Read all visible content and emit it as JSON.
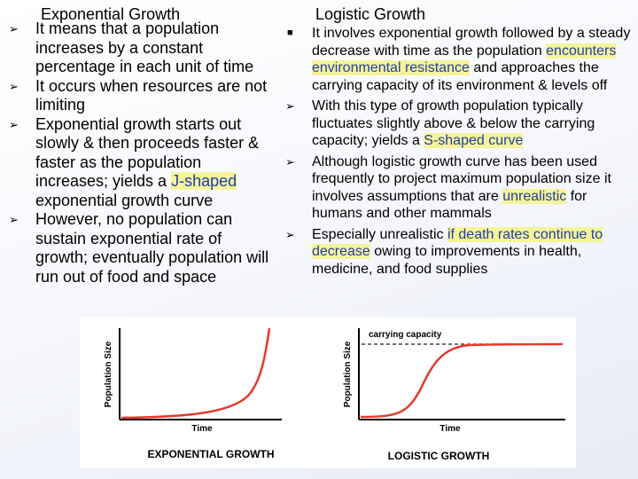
{
  "left": {
    "title": "Exponential Growth",
    "bullets": [
      {
        "segments": [
          {
            "text": "It means that a population increases by a constant percentage in each unit of time",
            "highlight": false
          }
        ]
      },
      {
        "segments": [
          {
            "text": "It occurs when resources are not limiting",
            "highlight": false
          }
        ]
      },
      {
        "segments": [
          {
            "text": "Exponential growth starts out slowly & then proceeds faster & faster as the population increases; yields a ",
            "highlight": false
          },
          {
            "text": "J-shaped",
            "highlight": true
          },
          {
            "text": " exponential growth curve",
            "highlight": false
          }
        ]
      },
      {
        "segments": [
          {
            "text": "However, no population can sustain exponential rate of growth; eventually population will run out of food and space",
            "highlight": false
          }
        ]
      }
    ]
  },
  "right": {
    "title": "Logistic Growth",
    "bullets": [
      {
        "marker": "square",
        "segments": [
          {
            "text": "It involves exponential growth followed by a steady decrease with time as the population ",
            "highlight": false
          },
          {
            "text": "encounters environmental resistance",
            "highlight": true
          },
          {
            "text": " and approaches the carrying capacity of its environment & levels off",
            "highlight": false
          }
        ]
      },
      {
        "marker": "arrow",
        "segments": [
          {
            "text": "With this type of growth population typically fluctuates slightly above & below the carrying capacity; yields a ",
            "highlight": false
          },
          {
            "text": "S-shaped curve",
            "highlight": true
          }
        ]
      },
      {
        "marker": "arrow",
        "segments": [
          {
            "text": "Although logistic growth curve has been used frequently to project maximum population size it involves assumptions that are ",
            "highlight": false
          },
          {
            "text": "unrealistic",
            "highlight": true
          },
          {
            "text": " for humans and other mammals",
            "highlight": false
          }
        ]
      },
      {
        "marker": "arrow",
        "segments": [
          {
            "text": "Especially unrealistic ",
            "highlight": false
          },
          {
            "text": "if death rates  continue to decrease",
            "highlight": true
          },
          {
            "text": " owing to improvements in health, medicine, and food supplies",
            "highlight": false
          }
        ]
      }
    ]
  },
  "figure": {
    "exponential": {
      "ylabel": "Population Size",
      "xlabel": "Time",
      "caption": "EXPONENTIAL GROWTH",
      "curve_color": "#e53a2c"
    },
    "logistic": {
      "ylabel": "Population Size",
      "xlabel": "Time",
      "caption": "LOGISTIC GROWTH",
      "capacity_label": "carrying capacity",
      "curve_color": "#e53a2c"
    }
  },
  "icons": {
    "arrow_bullet": "arrow-bullet-icon",
    "square_bullet": "square-bullet-icon"
  }
}
